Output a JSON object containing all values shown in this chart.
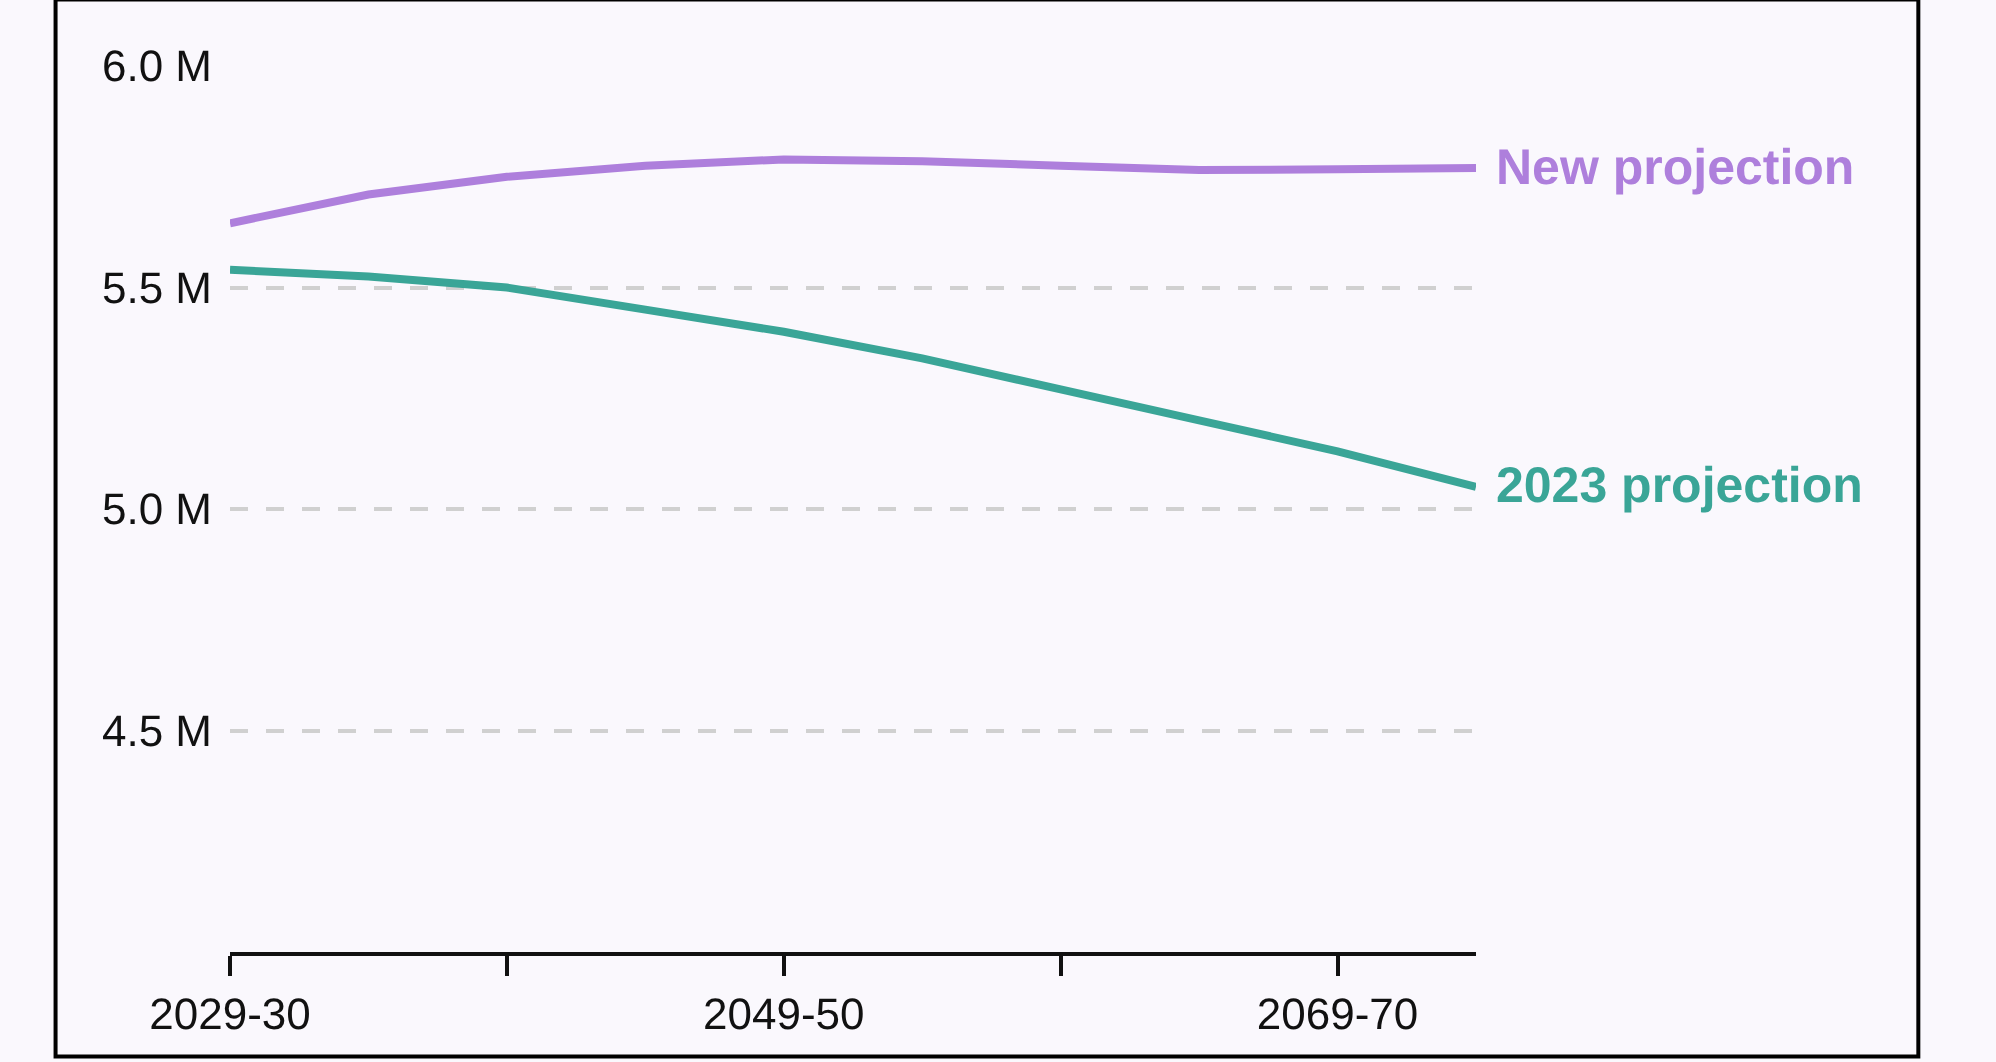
{
  "chart_data": {
    "type": "line",
    "categories": [
      "2029-30",
      null,
      null,
      null,
      "2049-50",
      null,
      null,
      null,
      "2069-70",
      null
    ],
    "series": [
      {
        "name": "New projection",
        "color": "#ae7fdc",
        "values": [
          5.645,
          5.71,
          5.75,
          5.775,
          5.789,
          5.785,
          5.775,
          5.765,
          5.767,
          5.77
        ]
      },
      {
        "name": "2023 projection",
        "color": "#3aa597",
        "values": [
          5.54,
          5.525,
          5.5,
          5.45,
          5.4,
          5.34,
          5.27,
          5.2,
          5.13,
          5.05
        ]
      }
    ],
    "ylim": [
      4.0,
      6.0
    ],
    "yticks": [
      {
        "value": 4.5,
        "label": "4.5 M"
      },
      {
        "value": 5.0,
        "label": "5.0 M"
      },
      {
        "value": 5.5,
        "label": "5.5 M"
      },
      {
        "value": 6.0,
        "label": "6.0 M"
      }
    ],
    "grid": "y",
    "legend": false,
    "marker": "none",
    "line_style": "solid"
  }
}
